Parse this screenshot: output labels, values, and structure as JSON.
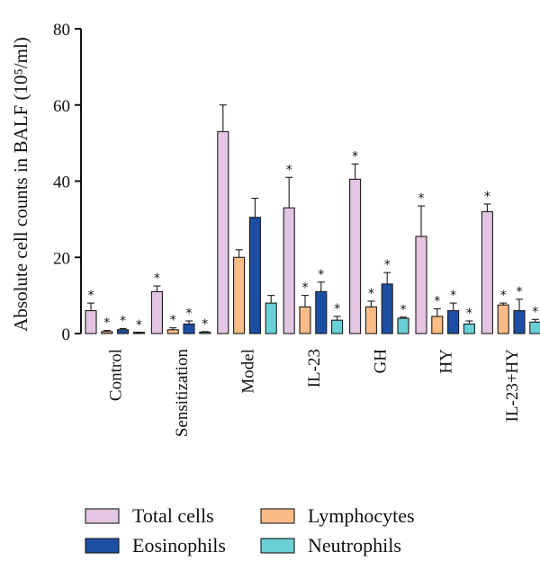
{
  "chart_data": {
    "type": "bar",
    "title": "",
    "xlabel": "",
    "ylabel": "Absolute cell counts in BALF (10⁵/ml)",
    "ylim": [
      0,
      80
    ],
    "yticks": [
      0,
      20,
      40,
      60,
      80
    ],
    "grid": false,
    "legend_position": "bottom",
    "significance_marker": "*",
    "categories": [
      "Control",
      "Sensitization",
      "Model",
      "IL-23",
      "GH",
      "HY",
      "IL-23+HY"
    ],
    "series": [
      {
        "name": "Total cells",
        "color": "#e3c6e2",
        "values": [
          6,
          11,
          53,
          33,
          40.5,
          25.5,
          32
        ],
        "errors": [
          2,
          1.5,
          7,
          8,
          4,
          8,
          2
        ],
        "significant": [
          true,
          true,
          false,
          true,
          true,
          true,
          true
        ]
      },
      {
        "name": "Lymphocytes",
        "color": "#f9bc86",
        "values": [
          0.5,
          1,
          20,
          7,
          7,
          4.5,
          7.5
        ],
        "errors": [
          0.3,
          0.5,
          2,
          3,
          1.5,
          2,
          0.5
        ],
        "significant": [
          true,
          true,
          false,
          true,
          true,
          true,
          true
        ]
      },
      {
        "name": "Eosinophils",
        "color": "#1c4fa4",
        "values": [
          1,
          2.5,
          30.5,
          11,
          13,
          6,
          6
        ],
        "errors": [
          0.3,
          0.8,
          5,
          2.5,
          3,
          2,
          3
        ],
        "significant": [
          true,
          true,
          false,
          true,
          true,
          true,
          true
        ]
      },
      {
        "name": "Neutrophils",
        "color": "#6ad0d8",
        "values": [
          0.1,
          0.3,
          8,
          3.5,
          4,
          2.5,
          3
        ],
        "errors": [
          0.1,
          0.2,
          2,
          1,
          0.3,
          0.8,
          0.7
        ],
        "significant": [
          true,
          true,
          false,
          true,
          true,
          true,
          true
        ]
      }
    ]
  }
}
